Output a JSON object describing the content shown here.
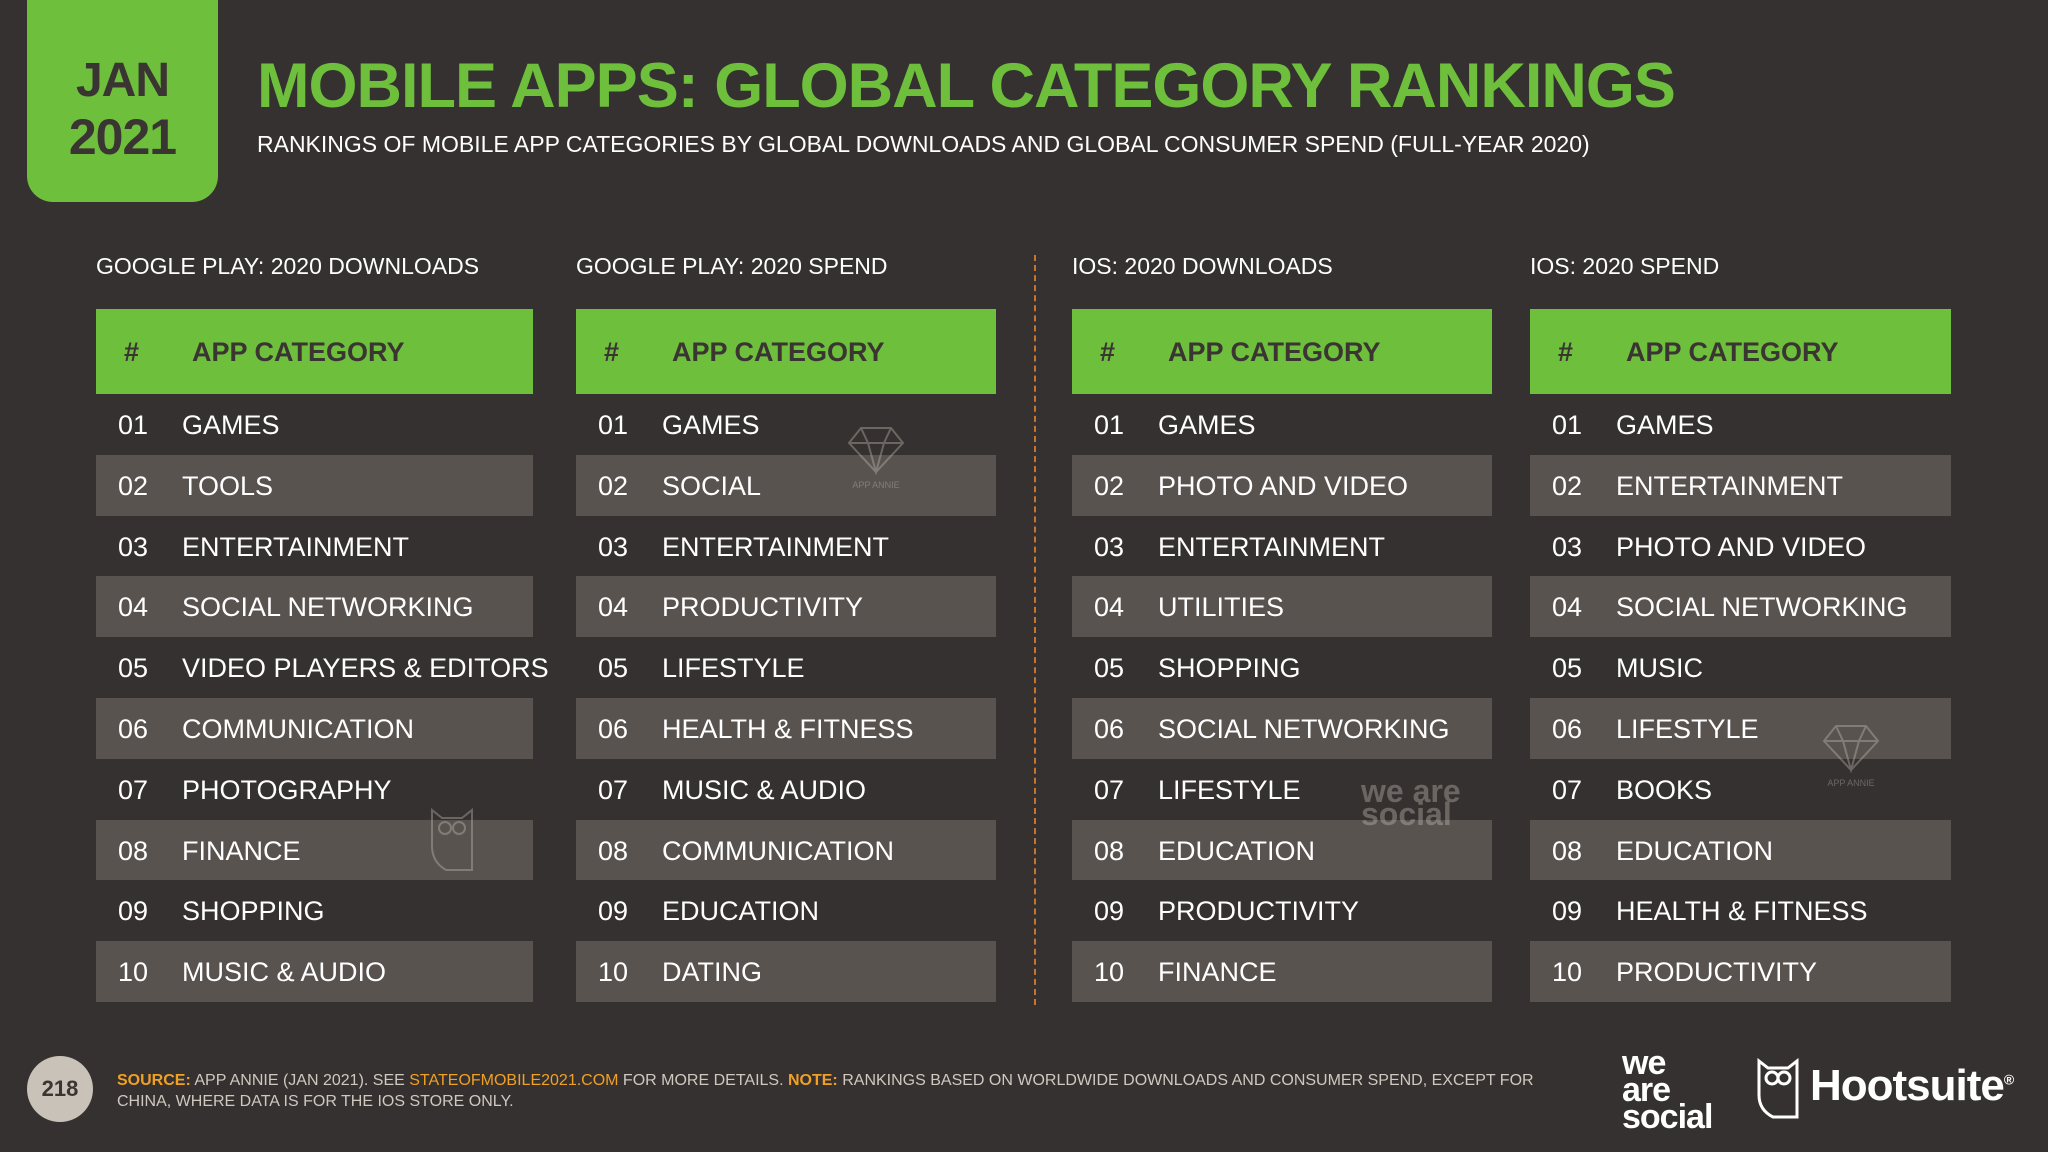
{
  "date_tab": {
    "month": "JAN",
    "year": "2021"
  },
  "title": "MOBILE APPS: GLOBAL CATEGORY RANKINGS",
  "subtitle": "RANKINGS OF MOBILE APP CATEGORIES BY GLOBAL DOWNLOADS AND GLOBAL CONSUMER SPEND (FULL-YEAR 2020)",
  "tables": [
    {
      "heading": "GOOGLE PLAY: 2020 DOWNLOADS",
      "col_num": "#",
      "col_cat": "APP CATEGORY",
      "rows": [
        {
          "num": "01",
          "cat": "GAMES"
        },
        {
          "num": "02",
          "cat": "TOOLS"
        },
        {
          "num": "03",
          "cat": "ENTERTAINMENT"
        },
        {
          "num": "04",
          "cat": "SOCIAL NETWORKING"
        },
        {
          "num": "05",
          "cat": "VIDEO PLAYERS & EDITORS"
        },
        {
          "num": "06",
          "cat": "COMMUNICATION"
        },
        {
          "num": "07",
          "cat": "PHOTOGRAPHY"
        },
        {
          "num": "08",
          "cat": "FINANCE"
        },
        {
          "num": "09",
          "cat": "SHOPPING"
        },
        {
          "num": "10",
          "cat": "MUSIC & AUDIO"
        }
      ]
    },
    {
      "heading": "GOOGLE PLAY: 2020 SPEND",
      "col_num": "#",
      "col_cat": "APP CATEGORY",
      "rows": [
        {
          "num": "01",
          "cat": "GAMES"
        },
        {
          "num": "02",
          "cat": "SOCIAL"
        },
        {
          "num": "03",
          "cat": "ENTERTAINMENT"
        },
        {
          "num": "04",
          "cat": "PRODUCTIVITY"
        },
        {
          "num": "05",
          "cat": "LIFESTYLE"
        },
        {
          "num": "06",
          "cat": "HEALTH & FITNESS"
        },
        {
          "num": "07",
          "cat": "MUSIC & AUDIO"
        },
        {
          "num": "08",
          "cat": "COMMUNICATION"
        },
        {
          "num": "09",
          "cat": "EDUCATION"
        },
        {
          "num": "10",
          "cat": "DATING"
        }
      ]
    },
    {
      "heading": "IOS: 2020 DOWNLOADS",
      "col_num": "#",
      "col_cat": "APP CATEGORY",
      "rows": [
        {
          "num": "01",
          "cat": "GAMES"
        },
        {
          "num": "02",
          "cat": "PHOTO AND VIDEO"
        },
        {
          "num": "03",
          "cat": "ENTERTAINMENT"
        },
        {
          "num": "04",
          "cat": "UTILITIES"
        },
        {
          "num": "05",
          "cat": "SHOPPING"
        },
        {
          "num": "06",
          "cat": "SOCIAL NETWORKING"
        },
        {
          "num": "07",
          "cat": "LIFESTYLE"
        },
        {
          "num": "08",
          "cat": "EDUCATION"
        },
        {
          "num": "09",
          "cat": "PRODUCTIVITY"
        },
        {
          "num": "10",
          "cat": "FINANCE"
        }
      ]
    },
    {
      "heading": "IOS: 2020 SPEND",
      "col_num": "#",
      "col_cat": "APP CATEGORY",
      "rows": [
        {
          "num": "01",
          "cat": "GAMES"
        },
        {
          "num": "02",
          "cat": "ENTERTAINMENT"
        },
        {
          "num": "03",
          "cat": "PHOTO AND VIDEO"
        },
        {
          "num": "04",
          "cat": "SOCIAL NETWORKING"
        },
        {
          "num": "05",
          "cat": "MUSIC"
        },
        {
          "num": "06",
          "cat": "LIFESTYLE"
        },
        {
          "num": "07",
          "cat": "BOOKS"
        },
        {
          "num": "08",
          "cat": "EDUCATION"
        },
        {
          "num": "09",
          "cat": "HEALTH & FITNESS"
        },
        {
          "num": "10",
          "cat": "PRODUCTIVITY"
        }
      ]
    }
  ],
  "watermarks": {
    "app_annie": "APP ANNIE",
    "we_are_social": "we are social"
  },
  "footer": {
    "page_number": "218",
    "source_label": "SOURCE:",
    "source_text": " APP ANNIE (JAN 2021). SEE ",
    "source_link": "STATEOFMOBILE2021.COM",
    "source_text2": " FOR MORE DETAILS. ",
    "note_label": "NOTE:",
    "note_text": " RANKINGS BASED ON WORLDWIDE DOWNLOADS AND CONSUMER SPEND, EXCEPT FOR CHINA, WHERE DATA IS FOR THE IOS STORE ONLY."
  },
  "logos": {
    "we_are_social": [
      "we",
      "are",
      "social"
    ],
    "hootsuite": "Hootsuite",
    "hootsuite_mark": "®"
  },
  "colors": {
    "accent_green": "#6ebf3b",
    "background": "#353130",
    "row_shade": "#595350",
    "highlight_orange": "#f0a024"
  },
  "icons": [
    "app-annie-diamond-icon",
    "hootsuite-owl-icon"
  ]
}
